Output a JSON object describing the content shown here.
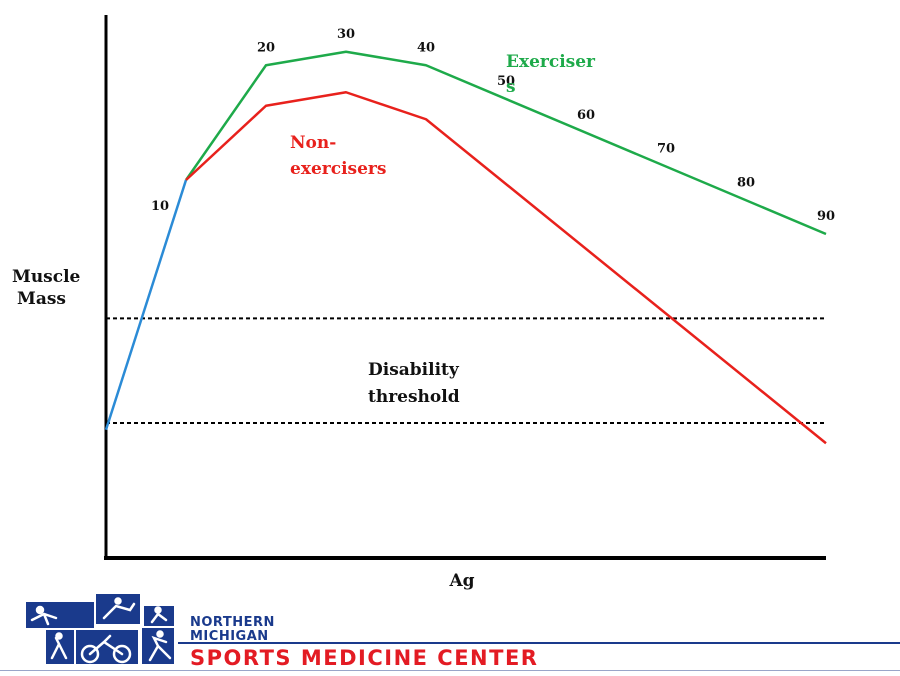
{
  "chart_data": {
    "type": "line",
    "xlabel": "Ag",
    "ylabel": "Muscle Mass",
    "x_tick_labels": [
      {
        "text": "10",
        "x": 10
      },
      {
        "text": "20",
        "x": 20
      },
      {
        "text": "30",
        "x": 30
      },
      {
        "text": "40",
        "x": 40
      },
      {
        "text": "50",
        "x": 50
      },
      {
        "text": "60",
        "x": 60
      },
      {
        "text": "70",
        "x": 70
      },
      {
        "text": "80",
        "x": 80
      },
      {
        "text": "90",
        "x": 90
      }
    ],
    "series": [
      {
        "key": "growth",
        "color": "#2b8bd6",
        "x": [
          0,
          10
        ],
        "y": [
          19,
          56
        ]
      },
      {
        "key": "exercisers",
        "color": "#1eaa4a",
        "x": [
          10,
          20,
          30,
          40,
          90
        ],
        "y": [
          56,
          73,
          75,
          73,
          48
        ]
      },
      {
        "key": "non_exercisers",
        "color": "#e8211c",
        "x": [
          10,
          20,
          30,
          40,
          90
        ],
        "y": [
          56,
          67,
          69,
          65,
          17
        ]
      }
    ],
    "threshold_lines": [
      {
        "y": 35.5
      },
      {
        "y": 20
      }
    ],
    "annotations": {
      "exercisers": {
        "lines": [
          "Exerciser",
          "s"
        ],
        "color": "#1eaa4a"
      },
      "non_exercisers": {
        "lines": [
          "Non-",
          "exercisers"
        ],
        "color": "#e8211c"
      },
      "threshold": {
        "lines": [
          "Disability",
          "threshold"
        ],
        "color": "#111111"
      }
    }
  },
  "footer": {
    "org_line1": "NORTHERN",
    "org_line2": "MICHIGAN",
    "org_main": "SPORTS MEDICINE CENTER",
    "brand_blue": "#1a3a8c",
    "brand_red": "#e31b23"
  }
}
